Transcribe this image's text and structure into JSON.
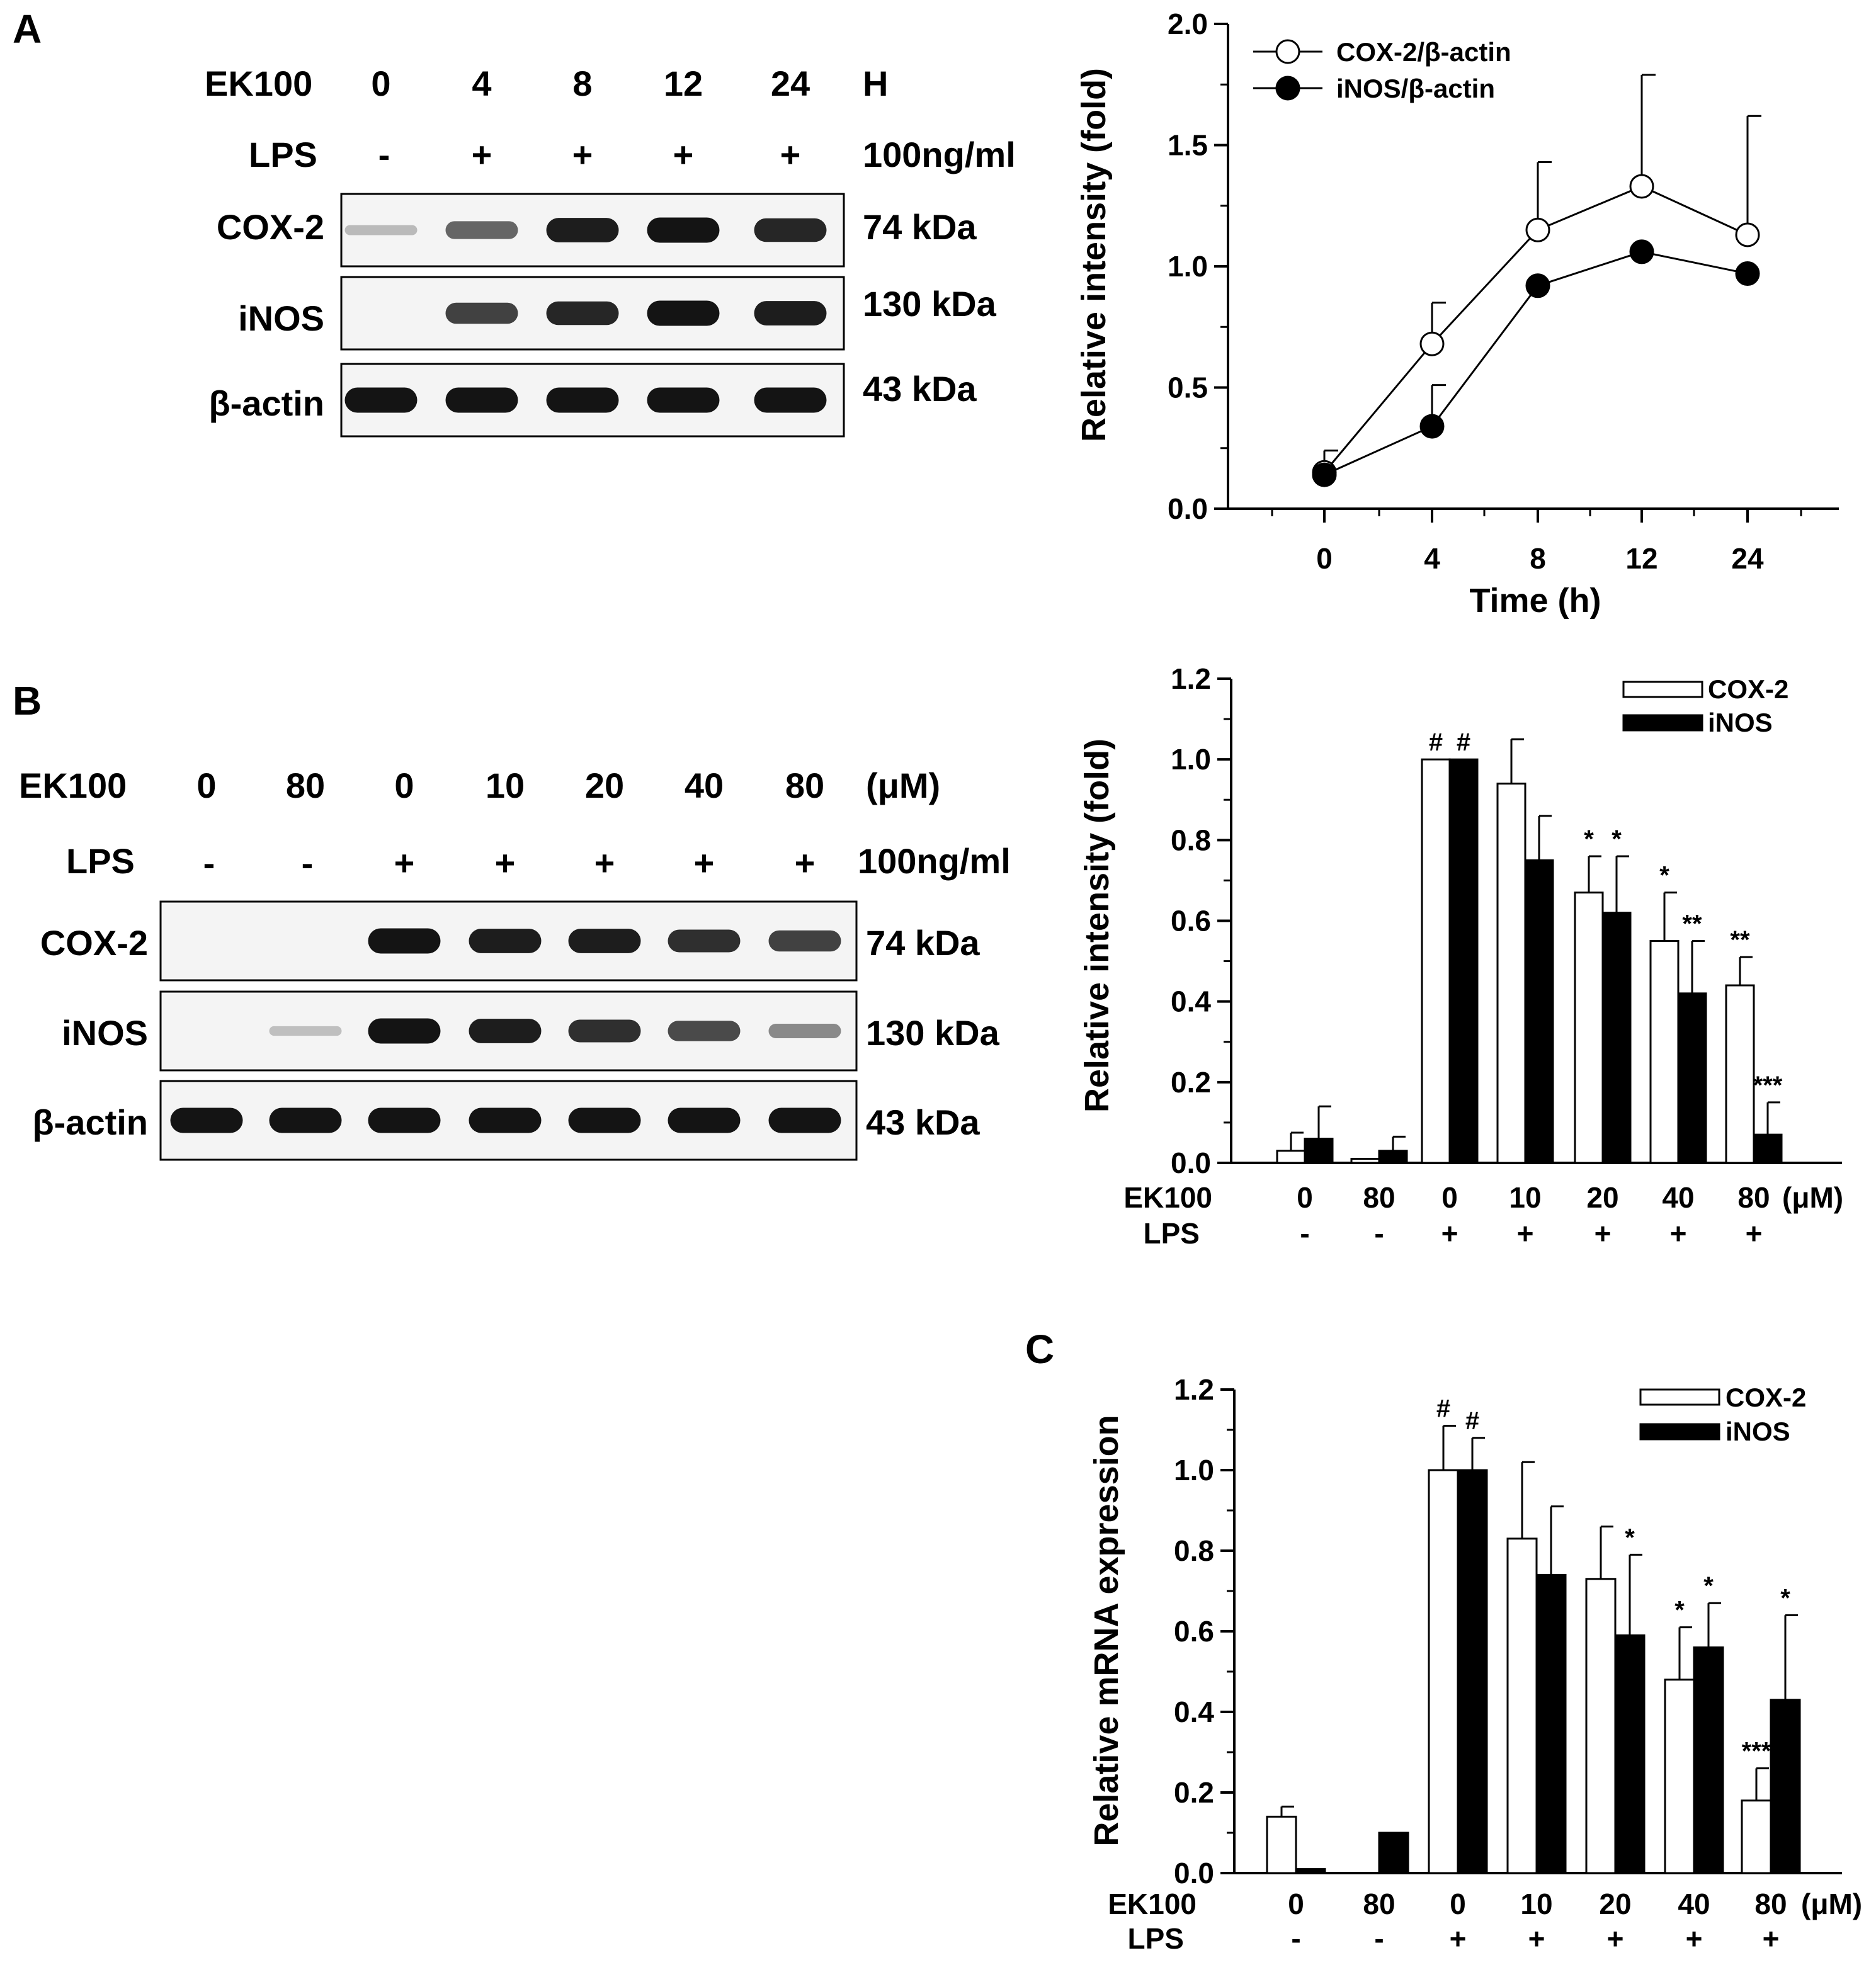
{
  "panel_letters": [
    "A",
    "B",
    "C"
  ],
  "blots": [
    {
      "lane_header_label": "EK100",
      "lane_header_values": [
        "0",
        "4",
        "8",
        "12",
        "24"
      ],
      "lane_header_unit": "H",
      "lps_label": "LPS",
      "lps_values": [
        "-",
        "+",
        "+",
        "+",
        "+"
      ],
      "lps_unit": "100ng/ml",
      "rows": [
        {
          "name": "COX-2",
          "kda": "74 kDa",
          "intensity": [
            0.08,
            0.55,
            0.95,
            1.0,
            0.9
          ]
        },
        {
          "name": "iNOS",
          "kda": "130 kDa",
          "intensity": [
            0.0,
            0.75,
            0.9,
            1.0,
            0.95
          ]
        },
        {
          "name": "β-actin",
          "kda": "43 kDa",
          "intensity": [
            1.0,
            1.0,
            1.0,
            1.0,
            1.0
          ]
        }
      ]
    },
    {
      "lane_header_label": "EK100",
      "lane_header_values": [
        "0",
        "80",
        "0",
        "10",
        "20",
        "40",
        "80"
      ],
      "lane_header_unit": "(μM)",
      "lps_label": "LPS",
      "lps_values": [
        "-",
        "-",
        "+",
        "+",
        "+",
        "+",
        "+"
      ],
      "lps_unit": "100ng/ml",
      "rows": [
        {
          "name": "COX-2",
          "kda": "74 kDa",
          "intensity": [
            0.0,
            0.0,
            1.0,
            0.95,
            0.95,
            0.85,
            0.75
          ]
        },
        {
          "name": "iNOS",
          "kda": "130 kDa",
          "intensity": [
            0.0,
            0.05,
            1.0,
            0.95,
            0.85,
            0.7,
            0.35
          ]
        },
        {
          "name": "β-actin",
          "kda": "43 kDa",
          "intensity": [
            1.0,
            1.0,
            1.0,
            1.0,
            1.0,
            1.0,
            1.0
          ]
        }
      ]
    }
  ],
  "chart_data": [
    {
      "type": "line",
      "xlabel": "Time (h)",
      "ylabel": "Relative intensity (fold)",
      "x": [
        "0",
        "4",
        "8",
        "12",
        "24"
      ],
      "ylim": [
        0,
        2.0
      ],
      "yticks": [
        "0.0",
        "0.5",
        "1.0",
        "1.5",
        "2.0"
      ],
      "legend": "top-left",
      "series": [
        {
          "name": "COX-2/β-actin",
          "marker": "open-circle",
          "values": [
            0.15,
            0.68,
            1.15,
            1.33,
            1.13
          ],
          "errors": [
            0.09,
            0.17,
            0.28,
            0.46,
            0.49
          ]
        },
        {
          "name": "iNOS/β-actin",
          "marker": "filled-circle",
          "values": [
            0.14,
            0.34,
            0.92,
            1.06,
            0.97
          ],
          "errors": [
            0.0,
            0.17,
            0.0,
            0.0,
            0.0
          ]
        }
      ]
    },
    {
      "type": "bar",
      "ylabel": "Relative intensity (fold)",
      "ylim": [
        0,
        1.2
      ],
      "yticks": [
        "0.0",
        "0.2",
        "0.4",
        "0.6",
        "0.8",
        "1.0",
        "1.2"
      ],
      "row1_label": "EK100",
      "row1_values": [
        "0",
        "80",
        "0",
        "10",
        "20",
        "40",
        "80"
      ],
      "row1_unit": "(μM)",
      "row2_label": "LPS",
      "row2_values": [
        "-",
        "-",
        "+",
        "+",
        "+",
        "+",
        "+"
      ],
      "legend": "top-right",
      "series": [
        {
          "name": "COX-2",
          "fill": "#ffffff",
          "values": [
            0.03,
            0.01,
            1.0,
            0.94,
            0.67,
            0.55,
            0.44
          ],
          "errors": [
            0.045,
            0.0,
            0.0,
            0.11,
            0.09,
            0.12,
            0.07
          ],
          "annotations": [
            "",
            "",
            "#",
            "",
            "*",
            "*",
            "**"
          ]
        },
        {
          "name": "iNOS",
          "fill": "#000000",
          "values": [
            0.06,
            0.03,
            1.0,
            0.75,
            0.62,
            0.42,
            0.07
          ],
          "errors": [
            0.08,
            0.035,
            0.0,
            0.11,
            0.14,
            0.13,
            0.08
          ],
          "annotations": [
            "",
            "",
            "#",
            "",
            "*",
            "**",
            "***"
          ]
        }
      ]
    },
    {
      "type": "bar",
      "ylabel": "Relative mRNA expression",
      "ylim": [
        0,
        1.2
      ],
      "yticks": [
        "0.0",
        "0.2",
        "0.4",
        "0.6",
        "0.8",
        "1.0",
        "1.2"
      ],
      "row1_label": "EK100",
      "row1_values": [
        "0",
        "80",
        "0",
        "10",
        "20",
        "40",
        "80"
      ],
      "row1_unit": "(μM)",
      "row2_label": "LPS",
      "row2_values": [
        "-",
        "-",
        "+",
        "+",
        "+",
        "+",
        "+"
      ],
      "legend": "top-right",
      "series": [
        {
          "name": "COX-2",
          "fill": "#ffffff",
          "values": [
            0.14,
            0.0,
            1.0,
            0.83,
            0.73,
            0.48,
            0.18
          ],
          "errors": [
            0.025,
            0.0,
            0.11,
            0.19,
            0.13,
            0.13,
            0.08
          ],
          "annotations": [
            "",
            "",
            "#",
            "",
            "",
            "*",
            "***"
          ]
        },
        {
          "name": "iNOS",
          "fill": "#000000",
          "values": [
            0.01,
            0.1,
            1.0,
            0.74,
            0.59,
            0.56,
            0.43
          ],
          "errors": [
            0.0,
            0.0,
            0.08,
            0.17,
            0.2,
            0.11,
            0.21
          ],
          "annotations": [
            "",
            "",
            "#",
            "",
            "*",
            "*",
            "*"
          ]
        }
      ]
    }
  ]
}
